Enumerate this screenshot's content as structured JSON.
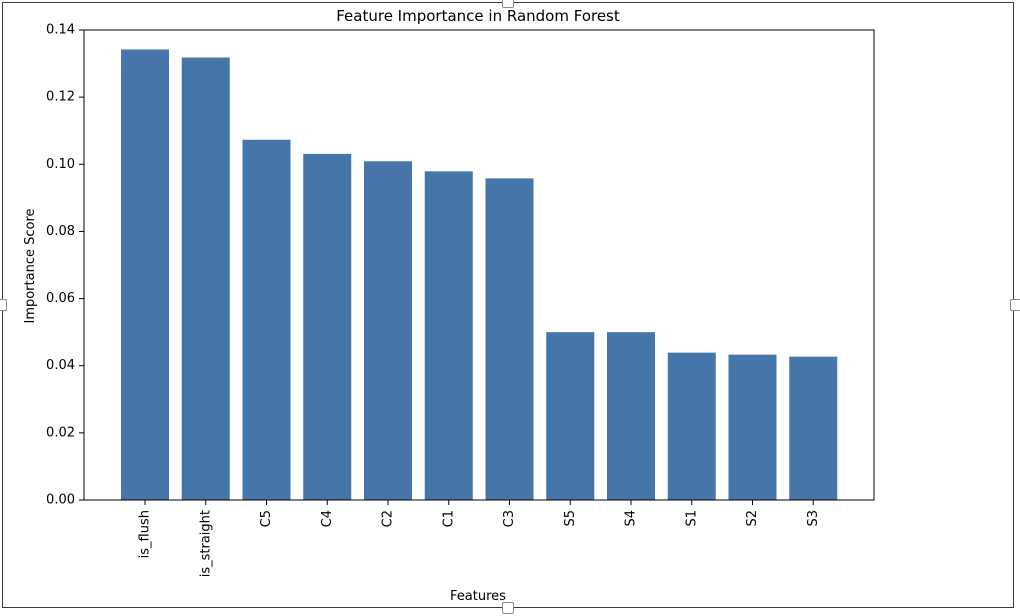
{
  "colors": {
    "bar": "#4675aa",
    "axis": "#000000",
    "background": "#ffffff"
  },
  "chart_data": {
    "type": "bar",
    "title": "Feature Importance in Random Forest",
    "xlabel": "Features",
    "ylabel": "Importance Score",
    "categories": [
      "is_flush",
      "is_straight",
      "C5",
      "C4",
      "C2",
      "C1",
      "C3",
      "S5",
      "S4",
      "S1",
      "S2",
      "S3"
    ],
    "values": [
      0.1342,
      0.1318,
      0.1073,
      0.1031,
      0.1009,
      0.0979,
      0.0958,
      0.05,
      0.05,
      0.0439,
      0.0433,
      0.0427
    ],
    "ylim": [
      0,
      0.14
    ],
    "yticks": [
      "0.00",
      "0.02",
      "0.04",
      "0.06",
      "0.08",
      "0.10",
      "0.12",
      "0.14"
    ],
    "grid": false,
    "legend": "none"
  }
}
